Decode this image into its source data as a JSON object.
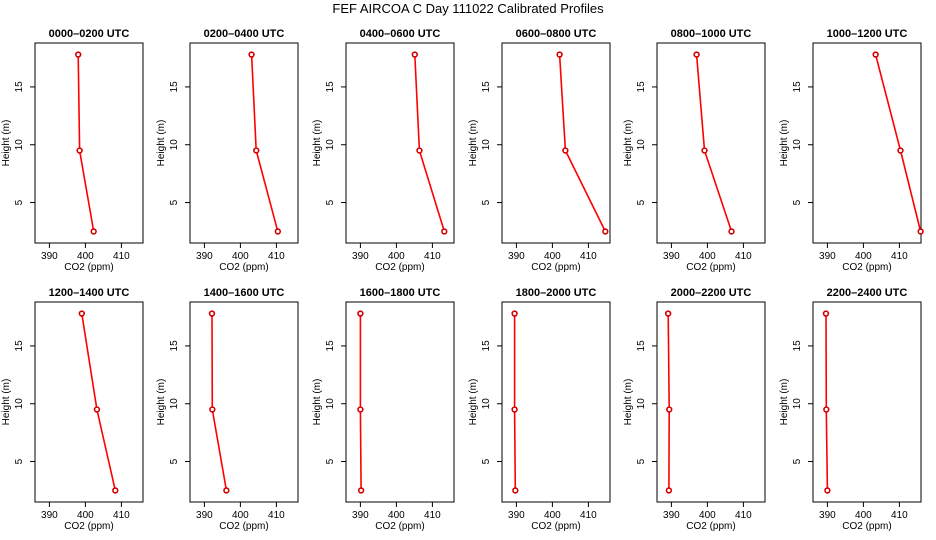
{
  "figure": {
    "title": "FEF AIRCOA C  Day 111022  Calibrated Profiles"
  },
  "chart_data": [
    {
      "type": "line",
      "title": "0000–0200 UTC",
      "xlabel": "CO2 (ppm)",
      "ylabel": "Height (m)",
      "xlim": [
        386,
        416
      ],
      "ylim": [
        1.5,
        18.8
      ],
      "x_ticks": [
        390,
        400,
        410
      ],
      "y_ticks": [
        5,
        10,
        15
      ],
      "series": [
        {
          "co2": [
            402.3,
            398.4,
            398.0
          ],
          "height": [
            2.5,
            9.5,
            17.8
          ]
        }
      ]
    },
    {
      "type": "line",
      "title": "0200–0400 UTC",
      "xlabel": "CO2 (ppm)",
      "ylabel": "Height (m)",
      "xlim": [
        386,
        416
      ],
      "ylim": [
        1.5,
        18.8
      ],
      "x_ticks": [
        390,
        400,
        410
      ],
      "y_ticks": [
        5,
        10,
        15
      ],
      "series": [
        {
          "co2": [
            410.4,
            404.4,
            403.1
          ],
          "height": [
            2.5,
            9.5,
            17.8
          ]
        }
      ]
    },
    {
      "type": "line",
      "title": "0400–0600 UTC",
      "xlabel": "CO2 (ppm)",
      "ylabel": "Height (m)",
      "xlim": [
        386,
        416
      ],
      "ylim": [
        1.5,
        18.8
      ],
      "x_ticks": [
        390,
        400,
        410
      ],
      "y_ticks": [
        5,
        10,
        15
      ],
      "series": [
        {
          "co2": [
            413.3,
            406.4,
            405.1
          ],
          "height": [
            2.5,
            9.5,
            17.8
          ]
        }
      ]
    },
    {
      "type": "line",
      "title": "0600–0800 UTC",
      "xlabel": "CO2 (ppm)",
      "ylabel": "Height (m)",
      "xlim": [
        386,
        416
      ],
      "ylim": [
        1.5,
        18.8
      ],
      "x_ticks": [
        390,
        400,
        410
      ],
      "y_ticks": [
        5,
        10,
        15
      ],
      "series": [
        {
          "co2": [
            414.7,
            403.6,
            402.0
          ],
          "height": [
            2.5,
            9.5,
            17.8
          ]
        }
      ]
    },
    {
      "type": "line",
      "title": "0800–1000 UTC",
      "xlabel": "CO2 (ppm)",
      "ylabel": "Height (m)",
      "xlim": [
        386,
        416
      ],
      "ylim": [
        1.5,
        18.8
      ],
      "x_ticks": [
        390,
        400,
        410
      ],
      "y_ticks": [
        5,
        10,
        15
      ],
      "series": [
        {
          "co2": [
            406.7,
            399.2,
            397.0
          ],
          "height": [
            2.5,
            9.5,
            17.8
          ]
        }
      ]
    },
    {
      "type": "line",
      "title": "1000–1200 UTC",
      "xlabel": "CO2 (ppm)",
      "ylabel": "Height (m)",
      "xlim": [
        386,
        416
      ],
      "ylim": [
        1.5,
        18.8
      ],
      "x_ticks": [
        390,
        400,
        410
      ],
      "y_ticks": [
        5,
        10,
        15
      ],
      "series": [
        {
          "co2": [
            415.9,
            410.3,
            403.4
          ],
          "height": [
            2.5,
            9.5,
            17.8
          ]
        }
      ]
    },
    {
      "type": "line",
      "title": "1200–1400 UTC",
      "xlabel": "CO2 (ppm)",
      "ylabel": "Height (m)",
      "xlim": [
        386,
        416
      ],
      "ylim": [
        1.5,
        18.8
      ],
      "x_ticks": [
        390,
        400,
        410
      ],
      "y_ticks": [
        5,
        10,
        15
      ],
      "series": [
        {
          "co2": [
            408.3,
            403.2,
            399.0
          ],
          "height": [
            2.5,
            9.5,
            17.8
          ]
        }
      ]
    },
    {
      "type": "line",
      "title": "1400–1600 UTC",
      "xlabel": "CO2 (ppm)",
      "ylabel": "Height (m)",
      "xlim": [
        386,
        416
      ],
      "ylim": [
        1.5,
        18.8
      ],
      "x_ticks": [
        390,
        400,
        410
      ],
      "y_ticks": [
        5,
        10,
        15
      ],
      "series": [
        {
          "co2": [
            396.1,
            392.2,
            392.1
          ],
          "height": [
            2.5,
            9.5,
            17.8
          ]
        }
      ]
    },
    {
      "type": "line",
      "title": "1600–1800 UTC",
      "xlabel": "CO2 (ppm)",
      "ylabel": "Height (m)",
      "xlim": [
        386,
        416
      ],
      "ylim": [
        1.5,
        18.8
      ],
      "x_ticks": [
        390,
        400,
        410
      ],
      "y_ticks": [
        5,
        10,
        15
      ],
      "series": [
        {
          "co2": [
            390.2,
            390.0,
            390.0
          ],
          "height": [
            2.5,
            9.5,
            17.8
          ]
        }
      ]
    },
    {
      "type": "line",
      "title": "1800–2000 UTC",
      "xlabel": "CO2 (ppm)",
      "ylabel": "Height (m)",
      "xlim": [
        386,
        416
      ],
      "ylim": [
        1.5,
        18.8
      ],
      "x_ticks": [
        390,
        400,
        410
      ],
      "y_ticks": [
        5,
        10,
        15
      ],
      "series": [
        {
          "co2": [
            389.7,
            389.5,
            389.5
          ],
          "height": [
            2.5,
            9.5,
            17.8
          ]
        }
      ]
    },
    {
      "type": "line",
      "title": "2000–2200 UTC",
      "xlabel": "CO2 (ppm)",
      "ylabel": "Height (m)",
      "xlim": [
        386,
        416
      ],
      "ylim": [
        1.5,
        18.8
      ],
      "x_ticks": [
        390,
        400,
        410
      ],
      "y_ticks": [
        5,
        10,
        15
      ],
      "series": [
        {
          "co2": [
            389.3,
            389.4,
            389.1
          ],
          "height": [
            2.5,
            9.5,
            17.8
          ]
        }
      ]
    },
    {
      "type": "line",
      "title": "2200–2400 UTC",
      "xlabel": "CO2 (ppm)",
      "ylabel": "Height (m)",
      "xlim": [
        386,
        416
      ],
      "ylim": [
        1.5,
        18.8
      ],
      "x_ticks": [
        390,
        400,
        410
      ],
      "y_ticks": [
        5,
        10,
        15
      ],
      "series": [
        {
          "co2": [
            390.0,
            389.7,
            389.6
          ],
          "height": [
            2.5,
            9.5,
            17.8
          ]
        }
      ]
    }
  ]
}
